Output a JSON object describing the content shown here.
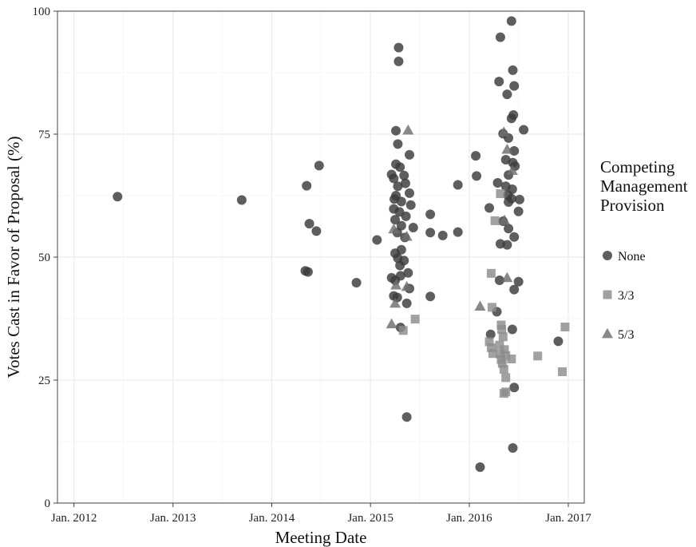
{
  "chart_data": {
    "type": "scatter",
    "xlabel": "Meeting Date",
    "ylabel": "Votes Cast in Favor of Proposal (%)",
    "x_ticks": [
      "Jan. 2012",
      "Jan. 2013",
      "Jan. 2014",
      "Jan. 2015",
      "Jan. 2016",
      "Jan. 2017"
    ],
    "y_ticks": [
      "0",
      "25",
      "50",
      "75",
      "100"
    ],
    "xlim": [
      "2011-11-01",
      "2017-03-01"
    ],
    "ylim": [
      0,
      100
    ],
    "grid": true,
    "legend": {
      "title_lines": [
        "Competing",
        "Management",
        "Provision"
      ],
      "position": "right"
    },
    "series": [
      {
        "name": "None",
        "marker": "circle",
        "color": "#3a3a3a",
        "points": [
          [
            "2012-06-10",
            62.3
          ],
          [
            "2013-09-12",
            61.6
          ],
          [
            "2014-05-10",
            64.5
          ],
          [
            "2014-05-20",
            56.8
          ],
          [
            "2014-06-15",
            55.3
          ],
          [
            "2014-06-25",
            68.6
          ],
          [
            "2014-05-05",
            47.2
          ],
          [
            "2014-05-15",
            47.0
          ],
          [
            "2014-11-10",
            44.8
          ],
          [
            "2015-01-25",
            53.5
          ],
          [
            "2015-04-15",
            92.6
          ],
          [
            "2015-04-15",
            89.8
          ],
          [
            "2015-04-05",
            75.7
          ],
          [
            "2015-04-12",
            73.0
          ],
          [
            "2015-05-25",
            70.8
          ],
          [
            "2015-04-05",
            68.9
          ],
          [
            "2015-04-20",
            68.3
          ],
          [
            "2015-03-20",
            66.8
          ],
          [
            "2015-03-28",
            66.0
          ],
          [
            "2015-05-05",
            66.6
          ],
          [
            "2015-05-10",
            65.0
          ],
          [
            "2015-04-12",
            64.4
          ],
          [
            "2015-05-25",
            63.0
          ],
          [
            "2015-04-05",
            62.5
          ],
          [
            "2015-03-30",
            61.8
          ],
          [
            "2015-04-25",
            61.3
          ],
          [
            "2015-05-30",
            60.6
          ],
          [
            "2015-03-28",
            59.8
          ],
          [
            "2015-04-18",
            59.2
          ],
          [
            "2015-05-12",
            58.3
          ],
          [
            "2015-04-02",
            57.6
          ],
          [
            "2015-04-25",
            56.4
          ],
          [
            "2015-06-08",
            56.0
          ],
          [
            "2015-04-10",
            55.0
          ],
          [
            "2015-05-08",
            54.0
          ],
          [
            "2015-04-25",
            51.5
          ],
          [
            "2015-04-02",
            50.8
          ],
          [
            "2015-04-12",
            49.8
          ],
          [
            "2015-05-05",
            49.3
          ],
          [
            "2015-04-20",
            48.3
          ],
          [
            "2015-05-20",
            46.8
          ],
          [
            "2015-04-22",
            46.2
          ],
          [
            "2015-03-20",
            45.8
          ],
          [
            "2015-04-02",
            45.3
          ],
          [
            "2015-05-25",
            43.6
          ],
          [
            "2015-03-28",
            42.1
          ],
          [
            "2015-04-10",
            41.8
          ],
          [
            "2015-05-15",
            40.6
          ],
          [
            "2015-04-22",
            35.7
          ],
          [
            "2015-05-15",
            17.5
          ],
          [
            "2015-08-10",
            58.7
          ],
          [
            "2015-08-10",
            55.0
          ],
          [
            "2015-09-25",
            54.4
          ],
          [
            "2015-11-20",
            55.1
          ],
          [
            "2015-11-20",
            64.7
          ],
          [
            "2015-08-10",
            42.0
          ],
          [
            "2016-01-25",
            70.6
          ],
          [
            "2016-01-28",
            66.5
          ],
          [
            "2016-03-15",
            60.0
          ],
          [
            "2016-03-20",
            34.3
          ],
          [
            "2016-02-10",
            7.3
          ],
          [
            "2016-04-25",
            94.7
          ],
          [
            "2016-06-05",
            98.0
          ],
          [
            "2016-04-20",
            85.7
          ],
          [
            "2016-06-10",
            88.0
          ],
          [
            "2016-06-15",
            84.8
          ],
          [
            "2016-05-20",
            83.1
          ],
          [
            "2016-06-12",
            78.9
          ],
          [
            "2016-06-05",
            78.2
          ],
          [
            "2016-05-05",
            75.1
          ],
          [
            "2016-05-25",
            74.2
          ],
          [
            "2016-07-20",
            75.9
          ],
          [
            "2016-06-15",
            71.6
          ],
          [
            "2016-05-15",
            69.8
          ],
          [
            "2016-06-10",
            69.2
          ],
          [
            "2016-06-18",
            68.5
          ],
          [
            "2016-05-25",
            66.7
          ],
          [
            "2016-04-15",
            65.1
          ],
          [
            "2016-05-15",
            64.4
          ],
          [
            "2016-06-08",
            63.8
          ],
          [
            "2016-05-22",
            62.6
          ],
          [
            "2016-06-05",
            61.9
          ],
          [
            "2016-07-05",
            61.7
          ],
          [
            "2016-05-25",
            61.2
          ],
          [
            "2016-07-01",
            59.3
          ],
          [
            "2016-05-05",
            57.3
          ],
          [
            "2016-05-25",
            55.8
          ],
          [
            "2016-04-25",
            52.7
          ],
          [
            "2016-05-20",
            52.5
          ],
          [
            "2016-06-15",
            54.1
          ],
          [
            "2016-04-22",
            45.3
          ],
          [
            "2016-07-01",
            45.0
          ],
          [
            "2016-06-15",
            43.4
          ],
          [
            "2016-04-12",
            38.9
          ],
          [
            "2016-06-08",
            35.3
          ],
          [
            "2016-06-15",
            23.5
          ],
          [
            "2016-06-10",
            11.2
          ],
          [
            "2016-11-25",
            32.9
          ]
        ]
      },
      {
        "name": "3/3",
        "marker": "square",
        "color": "#8c8c8c",
        "points": [
          [
            "2015-05-02",
            35.1
          ],
          [
            "2015-06-15",
            37.4
          ],
          [
            "2016-03-15",
            32.8
          ],
          [
            "2016-03-22",
            31.6
          ],
          [
            "2016-03-28",
            30.4
          ],
          [
            "2016-04-05",
            57.4
          ],
          [
            "2016-03-22",
            46.7
          ],
          [
            "2016-03-25",
            39.8
          ],
          [
            "2016-04-25",
            62.9
          ],
          [
            "2016-04-28",
            36.2
          ],
          [
            "2016-04-30",
            35.3
          ],
          [
            "2016-05-05",
            33.8
          ],
          [
            "2016-04-22",
            32.1
          ],
          [
            "2016-05-10",
            31.2
          ],
          [
            "2016-04-25",
            30.3
          ],
          [
            "2016-05-15",
            30.0
          ],
          [
            "2016-04-28",
            29.2
          ],
          [
            "2016-05-02",
            28.4
          ],
          [
            "2016-05-08",
            27.2
          ],
          [
            "2016-05-15",
            25.5
          ],
          [
            "2016-05-08",
            22.3
          ],
          [
            "2016-05-15",
            22.6
          ],
          [
            "2016-06-05",
            29.3
          ],
          [
            "2016-09-10",
            29.9
          ],
          [
            "2016-12-10",
            26.7
          ],
          [
            "2016-12-20",
            35.8
          ]
        ]
      },
      {
        "name": "5/3",
        "marker": "triangle",
        "color": "#6e6e6e",
        "points": [
          [
            "2015-05-20",
            75.8
          ],
          [
            "2015-03-28",
            55.7
          ],
          [
            "2015-05-15",
            54.2
          ],
          [
            "2015-04-05",
            44.3
          ],
          [
            "2015-05-15",
            44.0
          ],
          [
            "2015-04-02",
            40.6
          ],
          [
            "2015-03-20",
            36.4
          ],
          [
            "2016-02-10",
            40.0
          ],
          [
            "2016-05-08",
            75.4
          ],
          [
            "2016-05-20",
            71.9
          ],
          [
            "2016-06-08",
            67.6
          ],
          [
            "2016-05-10",
            57.5
          ],
          [
            "2016-05-20",
            45.8
          ]
        ]
      }
    ]
  }
}
